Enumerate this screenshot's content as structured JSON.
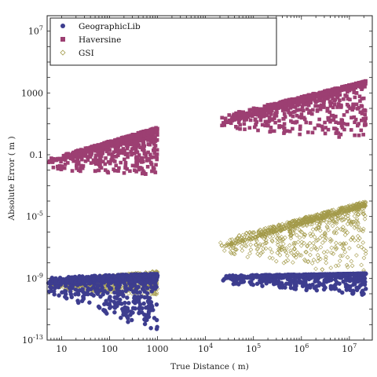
{
  "chart_data": {
    "type": "scatter",
    "title": "",
    "xlabel": "True Distance ( m)",
    "ylabel": "Absolute Error ( m )",
    "x_scale": "log",
    "y_scale": "log",
    "xlim": [
      5,
      30000000
    ],
    "ylim": [
      1e-13,
      100000000.0
    ],
    "x_ticks": [
      {
        "value": 10,
        "label": "10"
      },
      {
        "value": 100,
        "label": "100"
      },
      {
        "value": 1000,
        "label": "1000"
      },
      {
        "value": 10000,
        "label": "10^4"
      },
      {
        "value": 100000,
        "label": "10^5"
      },
      {
        "value": 1000000,
        "label": "10^6"
      },
      {
        "value": 10000000,
        "label": "10^7"
      }
    ],
    "y_ticks": [
      {
        "value": 1e-13,
        "label": "10^-13"
      },
      {
        "value": 1e-09,
        "label": "10^-9"
      },
      {
        "value": 1e-05,
        "label": "10^-5"
      },
      {
        "value": 0.1,
        "label": "0.1"
      },
      {
        "value": 1000,
        "label": "1000"
      },
      {
        "value": 10000000.0,
        "label": "10^7"
      }
    ],
    "grid": false,
    "legend_position": "top-left",
    "series": [
      {
        "name": "GeographicLib",
        "marker": "filled-circle",
        "color": "#3d3d8f",
        "segments": [
          {
            "x_range": [
              5,
              1000
            ],
            "y_trend": [
              5e-10,
              1e-09
            ],
            "y_spread_low": [
              1e-10,
              3e-13
            ],
            "y_spread_high": [
              1.2e-09,
              2e-09
            ]
          },
          {
            "x_range": [
              20000,
              22000000
            ],
            "y_trend": [
              1e-09,
              2e-09
            ],
            "y_spread_low": [
              5e-10,
              8e-11
            ],
            "y_spread_high": [
              1.5e-09,
              2e-09
            ]
          }
        ]
      },
      {
        "name": "Haversine",
        "marker": "filled-square",
        "color": "#9c3f72",
        "segments": [
          {
            "x_range": [
              5,
              1000
            ],
            "y_trend": [
              0.03,
              3
            ],
            "y_spread_low": [
              0.01,
              0.005
            ],
            "y_spread_high": [
              0.05,
              6
            ]
          },
          {
            "x_range": [
              20000,
              22000000
            ],
            "y_trend": [
              10,
              4000
            ],
            "y_spread_low": [
              5,
              1
            ],
            "y_spread_high": [
              30,
              6000
            ]
          }
        ]
      },
      {
        "name": "GSI",
        "marker": "open-diamond",
        "color": "#a39a4a",
        "segments": [
          {
            "x_range": [
              5,
              1000
            ],
            "y_trend": [
              3e-10,
              1e-09
            ],
            "y_spread_low": [
              2e-10,
              8e-11
            ],
            "y_spread_high": [
              6e-10,
              3e-09
            ]
          },
          {
            "x_range": [
              20000,
              22000000
            ],
            "y_trend": [
              1e-07,
              5e-05
            ],
            "y_spread_low": [
              5e-08,
              1e-09
            ],
            "y_spread_high": [
              3e-07,
              0.0001
            ]
          }
        ]
      }
    ]
  }
}
